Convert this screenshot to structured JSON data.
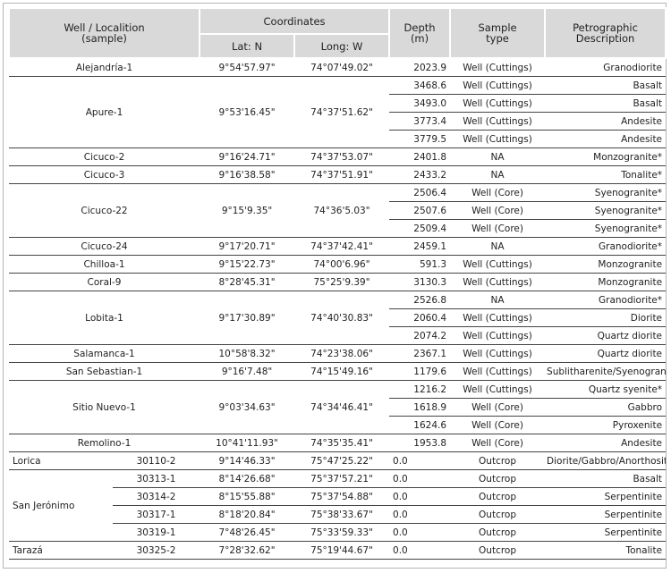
{
  "header": {
    "well": "Well / Localition (sample)",
    "coordinates": "Coordinates",
    "lat": "Lat: N",
    "long": "Long: W",
    "depth": "Depth (m)",
    "sample_type": "Sample type",
    "description": "Petrographic Description"
  },
  "wells": [
    {
      "name": "Alejandría-1",
      "lat": "9°54'57.97\"",
      "long": "74°07'49.02\"",
      "samples": [
        {
          "depth": "2023.9",
          "type": "Well (Cuttings)",
          "description": "Granodiorite"
        }
      ]
    },
    {
      "name": "Apure-1",
      "lat": "9°53'16.45\"",
      "long": "74°37'51.62\"",
      "samples": [
        {
          "depth": "3468.6",
          "type": "Well (Cuttings)",
          "description": "Basalt"
        },
        {
          "depth": "3493.0",
          "type": "Well (Cuttings)",
          "description": "Basalt"
        },
        {
          "depth": "3773.4",
          "type": "Well (Cuttings)",
          "description": "Andesite"
        },
        {
          "depth": "3779.5",
          "type": "Well (Cuttings)",
          "description": "Andesite"
        }
      ]
    },
    {
      "name": "Cicuco-2",
      "lat": "9°16'24.71\"",
      "long": "74°37'53.07\"",
      "samples": [
        {
          "depth": "2401.8",
          "type": "NA",
          "description": "Monzogranite*"
        }
      ]
    },
    {
      "name": "Cicuco-3",
      "lat": "9°16'38.58\"",
      "long": "74°37'51.91\"",
      "samples": [
        {
          "depth": "2433.2",
          "type": "NA",
          "description": "Tonalite*"
        }
      ]
    },
    {
      "name": "Cicuco-22",
      "lat": "9°15'9.35\"",
      "long": "74°36'5.03\"",
      "samples": [
        {
          "depth": "2506.4",
          "type": "Well (Core)",
          "description": "Syenogranite*"
        },
        {
          "depth": "2507.6",
          "type": "Well (Core)",
          "description": "Syenogranite*"
        },
        {
          "depth": "2509.4",
          "type": "Well (Core)",
          "description": "Syenogranite*"
        }
      ]
    },
    {
      "name": "Cicuco-24",
      "lat": "9°17'20.71\"",
      "long": "74°37'42.41\"",
      "samples": [
        {
          "depth": "2459.1",
          "type": "NA",
          "description": "Granodiorite*"
        }
      ]
    },
    {
      "name": "Chilloa-1",
      "lat": "9°15'22.73\"",
      "long": "74°00'6.96\"",
      "samples": [
        {
          "depth": "591.3",
          "type": "Well (Cuttings)",
          "description": "Monzogranite"
        }
      ]
    },
    {
      "name": "Coral-9",
      "lat": "8°28'45.31\"",
      "long": "75°25'9.39\"",
      "samples": [
        {
          "depth": "3130.3",
          "type": "Well (Cuttings)",
          "description": "Monzogranite"
        }
      ]
    },
    {
      "name": "Lobita-1",
      "lat": "9°17'30.89\"",
      "long": "74°40'30.83\"",
      "samples": [
        {
          "depth": "2526.8",
          "type": "NA",
          "description": "Granodiorite*"
        },
        {
          "depth": "2060.4",
          "type": "Well (Cuttings)",
          "description": "Diorite"
        },
        {
          "depth": "2074.2",
          "type": "Well (Cuttings)",
          "description": "Quartz diorite"
        }
      ]
    },
    {
      "name": "Salamanca-1",
      "lat": "10°58'8.32\"",
      "long": "74°23'38.06\"",
      "samples": [
        {
          "depth": "2367.1",
          "type": "Well (Cuttings)",
          "description": "Quartz diorite"
        }
      ]
    },
    {
      "name": "San Sebastian-1",
      "lat": "9°16'7.48\"",
      "long": "74°15'49.16\"",
      "samples": [
        {
          "depth": "1179.6",
          "type": "Well (Cuttings)",
          "description": "Sublitharenite/Syenogranite"
        }
      ]
    },
    {
      "name": "Sitio Nuevo-1",
      "lat": "9°03'34.63\"",
      "long": "74°34'46.41\"",
      "samples": [
        {
          "depth": "1216.2",
          "type": "Well (Cuttings)",
          "description": "Quartz syenite*"
        },
        {
          "depth": "1618.9",
          "type": "Well (Core)",
          "description": "Gabbro"
        },
        {
          "depth": "1624.6",
          "type": "Well (Core)",
          "description": "Pyroxenite"
        }
      ]
    },
    {
      "name": "Remolino-1",
      "lat": "10°41'11.93\"",
      "long": "74°35'35.41\"",
      "samples": [
        {
          "depth": "1953.8",
          "type": "Well (Core)",
          "description": "Andesite"
        }
      ]
    }
  ],
  "outcrops": [
    {
      "locality": "Lorica",
      "samples": [
        {
          "id": "30110-2",
          "lat": "9°14'46.33\"",
          "long": "75°47'25.22\"",
          "depth": "0.0",
          "type": "Outcrop",
          "description": "Diorite/Gabbro/Anorthosite"
        }
      ]
    },
    {
      "locality": "San Jerónimo",
      "samples": [
        {
          "id": "30313-1",
          "lat": "8°14'26.68\"",
          "long": "75°37'57.21\"",
          "depth": "0.0",
          "type": "Outcrop",
          "description": "Basalt"
        },
        {
          "id": "30314-2",
          "lat": "8°15'55.88\"",
          "long": "75°37'54.88\"",
          "depth": "0.0",
          "type": "Outcrop",
          "description": "Serpentinite"
        },
        {
          "id": "30317-1",
          "lat": "8°18'20.84\"",
          "long": "75°38'33.67\"",
          "depth": "0.0",
          "type": "Outcrop",
          "description": "Serpentinite"
        },
        {
          "id": "30319-1",
          "lat": "7°48'26.45\"",
          "long": "75°33'59.33\"",
          "depth": "0.0",
          "type": "Outcrop",
          "description": "Serpentinite"
        }
      ]
    },
    {
      "locality": "Tarazá",
      "samples": [
        {
          "id": "30325-2",
          "lat": "7°28'32.62\"",
          "long": "75°19'44.67\"",
          "depth": "0.0",
          "type": "Outcrop",
          "description": "Tonalite"
        }
      ]
    }
  ]
}
